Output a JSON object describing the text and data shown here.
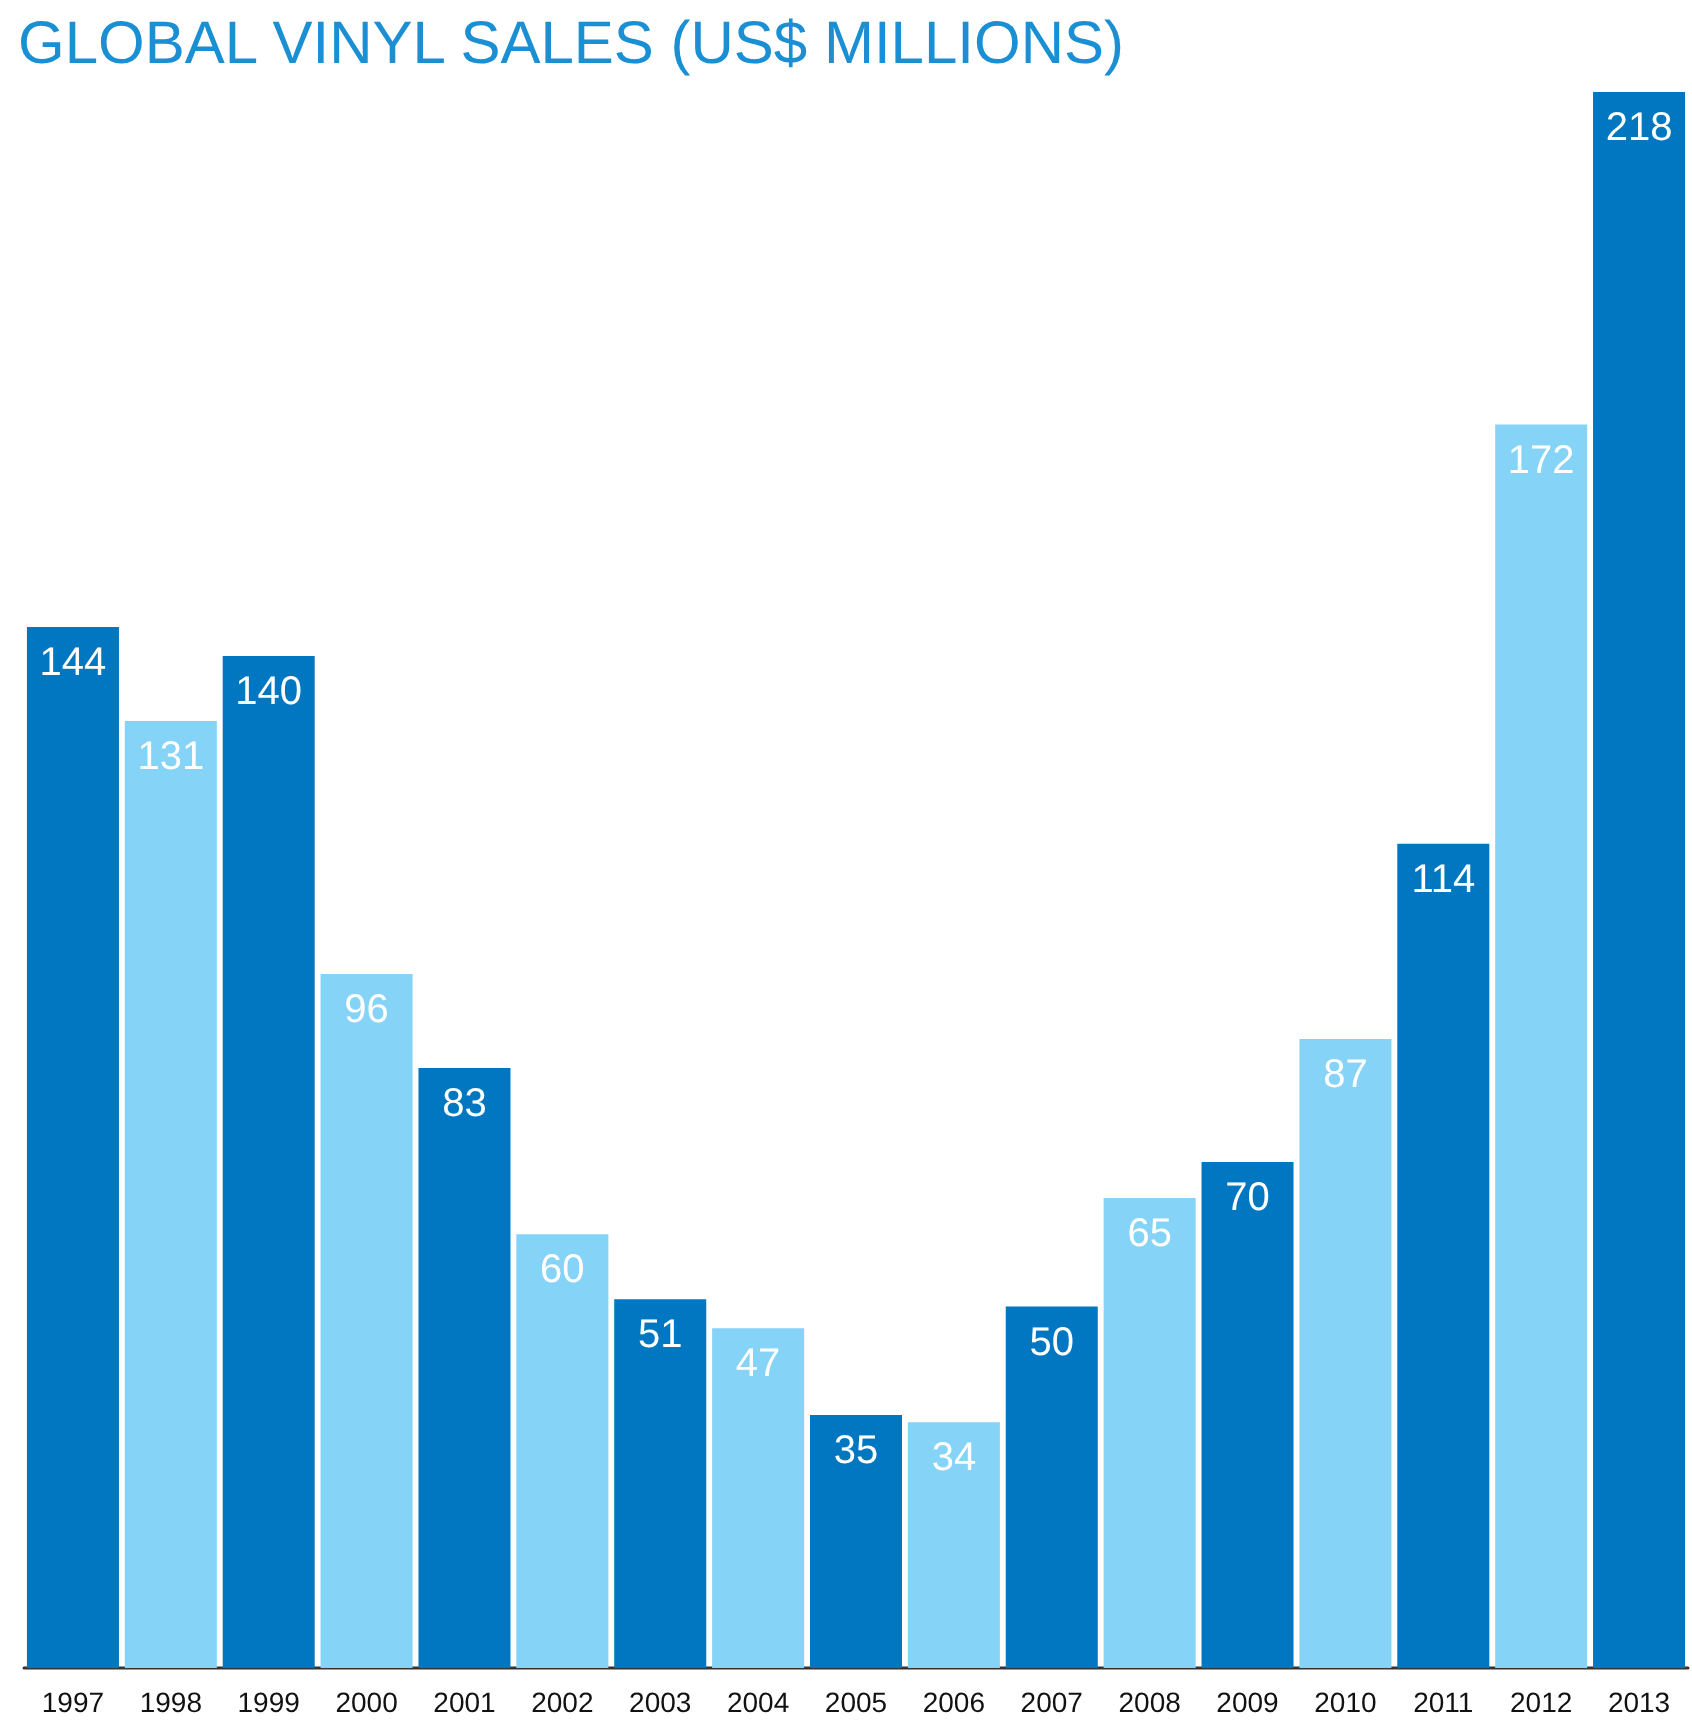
{
  "chart_data": {
    "type": "bar",
    "title": "GLOBAL VINYL SALES (US$ MILLIONS)",
    "categories": [
      "1997",
      "1998",
      "1999",
      "2000",
      "2001",
      "2002",
      "2003",
      "2004",
      "2005",
      "2006",
      "2007",
      "2008",
      "2009",
      "2010",
      "2011",
      "2012",
      "2013"
    ],
    "values": [
      144,
      131,
      140,
      96,
      83,
      60,
      51,
      47,
      35,
      34,
      50,
      65,
      70,
      87,
      114,
      172,
      218
    ],
    "colors": [
      "#0077c0",
      "#85d3f7",
      "#0077c0",
      "#85d3f7",
      "#0077c0",
      "#85d3f7",
      "#0077c0",
      "#85d3f7",
      "#0077c0",
      "#85d3f7",
      "#0077c0",
      "#85d3f7",
      "#0077c0",
      "#85d3f7",
      "#0077c0",
      "#85d3f7",
      "#0077c0"
    ],
    "data_labels": true
  }
}
